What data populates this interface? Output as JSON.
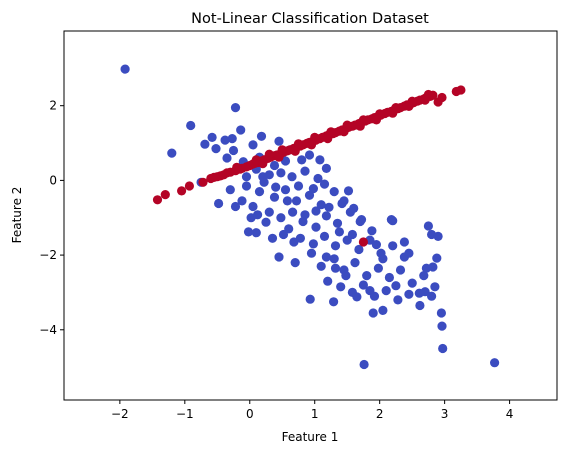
{
  "chart_data": {
    "type": "scatter",
    "title": "Not-Linear Classification Dataset",
    "xlabel": "Feature 1",
    "ylabel": "Feature 2",
    "xlim": [
      -2.86,
      4.73
    ],
    "ylim": [
      -5.88,
      4.0
    ],
    "x_ticks": [
      -2,
      -1,
      0,
      1,
      2,
      3,
      4
    ],
    "y_ticks": [
      -4,
      -2,
      0,
      2
    ],
    "x_tick_labels": [
      "−2",
      "−1",
      "0",
      "1",
      "2",
      "3",
      "4"
    ],
    "y_tick_labels": [
      "−4",
      "−2",
      "0",
      "2"
    ],
    "grid": false,
    "legend": "none",
    "series": [
      {
        "color": "#3b4cc0",
        "points": [
          [
            -1.92,
            2.98
          ],
          [
            -0.91,
            1.47
          ],
          [
            -0.22,
            1.95
          ],
          [
            -1.2,
            0.73
          ],
          [
            -0.58,
            1.15
          ],
          [
            -0.38,
            1.08
          ],
          [
            -0.27,
            1.12
          ],
          [
            -0.14,
            1.35
          ],
          [
            -0.69,
            0.97
          ],
          [
            -0.52,
            0.85
          ],
          [
            -0.25,
            0.8
          ],
          [
            0.05,
            0.95
          ],
          [
            0.18,
            1.18
          ],
          [
            0.45,
            1.05
          ],
          [
            0.62,
            0.82
          ],
          [
            0.8,
            0.55
          ],
          [
            -0.35,
            0.6
          ],
          [
            -0.1,
            0.5
          ],
          [
            0.1,
            0.3
          ],
          [
            0.3,
            0.15
          ],
          [
            -0.05,
            0.1
          ],
          [
            0.22,
            -0.05
          ],
          [
            0.48,
            0.2
          ],
          [
            0.65,
            0.1
          ],
          [
            0.85,
            0.25
          ],
          [
            1.05,
            0.05
          ],
          [
            1.15,
            -0.1
          ],
          [
            -0.3,
            -0.25
          ],
          [
            -0.05,
            -0.15
          ],
          [
            0.15,
            -0.3
          ],
          [
            0.38,
            -0.45
          ],
          [
            0.55,
            -0.25
          ],
          [
            0.72,
            -0.55
          ],
          [
            0.92,
            -0.4
          ],
          [
            1.1,
            -0.65
          ],
          [
            1.3,
            -0.3
          ],
          [
            1.45,
            -0.55
          ],
          [
            -0.75,
            -0.05
          ],
          [
            -0.12,
            -0.55
          ],
          [
            0.05,
            -0.7
          ],
          [
            0.3,
            -0.85
          ],
          [
            0.48,
            -1.0
          ],
          [
            0.66,
            -0.85
          ],
          [
            0.82,
            -1.1
          ],
          [
            1.02,
            -1.25
          ],
          [
            1.18,
            -0.95
          ],
          [
            1.35,
            -1.15
          ],
          [
            1.55,
            -0.85
          ],
          [
            1.7,
            -1.1
          ],
          [
            1.88,
            -1.35
          ],
          [
            0.1,
            -1.4
          ],
          [
            0.35,
            -1.55
          ],
          [
            0.6,
            -1.3
          ],
          [
            0.78,
            -1.55
          ],
          [
            0.98,
            -1.7
          ],
          [
            1.15,
            -1.5
          ],
          [
            1.32,
            -1.75
          ],
          [
            1.5,
            -1.6
          ],
          [
            1.68,
            -1.85
          ],
          [
            1.85,
            -1.6
          ],
          [
            2.02,
            -1.95
          ],
          [
            2.2,
            -1.75
          ],
          [
            2.38,
            -2.05
          ],
          [
            0.45,
            -2.05
          ],
          [
            0.7,
            -2.2
          ],
          [
            0.95,
            -1.95
          ],
          [
            1.1,
            -2.3
          ],
          [
            1.3,
            -2.1
          ],
          [
            1.45,
            -2.4
          ],
          [
            1.62,
            -2.2
          ],
          [
            1.8,
            -2.55
          ],
          [
            1.98,
            -2.35
          ],
          [
            2.15,
            -2.6
          ],
          [
            2.32,
            -2.4
          ],
          [
            2.5,
            -2.75
          ],
          [
            2.68,
            -2.55
          ],
          [
            2.85,
            -2.85
          ],
          [
            1.2,
            -2.7
          ],
          [
            1.4,
            -2.85
          ],
          [
            1.58,
            -3.0
          ],
          [
            1.75,
            -2.8
          ],
          [
            1.92,
            -3.1
          ],
          [
            2.1,
            -2.95
          ],
          [
            2.28,
            -3.2
          ],
          [
            2.45,
            -3.05
          ],
          [
            2.62,
            -3.35
          ],
          [
            2.8,
            -3.1
          ],
          [
            2.95,
            -3.55
          ],
          [
            2.96,
            -3.9
          ],
          [
            2.97,
            -4.5
          ],
          [
            1.76,
            -4.93
          ],
          [
            3.77,
            -4.88
          ],
          [
            0.93,
            -3.18
          ],
          [
            1.29,
            -3.25
          ],
          [
            1.9,
            -3.55
          ],
          [
            2.05,
            -3.48
          ],
          [
            2.18,
            -1.05
          ],
          [
            2.2,
            -1.08
          ],
          [
            2.38,
            -1.65
          ],
          [
            2.75,
            -1.22
          ],
          [
            2.8,
            -1.45
          ],
          [
            2.9,
            -1.5
          ],
          [
            2.88,
            -2.08
          ],
          [
            2.72,
            -2.35
          ],
          [
            2.82,
            -2.32
          ],
          [
            2.61,
            -3.02
          ],
          [
            2.7,
            -2.98
          ],
          [
            1.58,
            -1.45
          ],
          [
            1.42,
            -0.62
          ],
          [
            1.22,
            -0.72
          ],
          [
            1.02,
            -0.82
          ],
          [
            0.85,
            -0.92
          ],
          [
            0.58,
            -0.55
          ],
          [
            0.4,
            -0.18
          ],
          [
            0.2,
            0.1
          ],
          [
            -0.48,
            -0.62
          ],
          [
            -0.22,
            -0.7
          ],
          [
            0.02,
            -1.0
          ],
          [
            -0.02,
            -1.38
          ],
          [
            0.15,
            0.62
          ],
          [
            0.38,
            0.4
          ],
          [
            0.55,
            0.52
          ],
          [
            0.92,
            0.68
          ],
          [
            1.08,
            0.55
          ],
          [
            1.18,
            0.32
          ],
          [
            1.52,
            -0.28
          ],
          [
            1.6,
            -0.75
          ],
          [
            1.72,
            -1.05
          ],
          [
            1.95,
            -1.72
          ],
          [
            2.05,
            -2.1
          ],
          [
            2.25,
            -2.82
          ],
          [
            1.85,
            -2.95
          ],
          [
            1.65,
            -3.12
          ],
          [
            1.48,
            -2.55
          ],
          [
            1.32,
            -2.35
          ],
          [
            1.18,
            -2.05
          ],
          [
            0.68,
            -1.65
          ],
          [
            0.52,
            -1.45
          ],
          [
            0.25,
            -1.12
          ],
          [
            0.12,
            -0.92
          ],
          [
            0.75,
            -0.15
          ],
          [
            0.98,
            -0.22
          ],
          [
            1.38,
            -1.38
          ],
          [
            2.45,
            -1.95
          ]
        ]
      },
      {
        "color": "#b40426",
        "points": [
          [
            -1.42,
            -0.52
          ],
          [
            -1.3,
            -0.38
          ],
          [
            -1.05,
            -0.28
          ],
          [
            -0.93,
            -0.15
          ],
          [
            -0.72,
            -0.05
          ],
          [
            -0.55,
            0.08
          ],
          [
            -0.45,
            0.12
          ],
          [
            -0.35,
            0.2
          ],
          [
            -0.22,
            0.26
          ],
          [
            -0.12,
            0.32
          ],
          [
            0.0,
            0.4
          ],
          [
            0.08,
            0.46
          ],
          [
            0.18,
            0.52
          ],
          [
            0.28,
            0.59
          ],
          [
            0.38,
            0.66
          ],
          [
            0.48,
            0.72
          ],
          [
            0.58,
            0.79
          ],
          [
            0.68,
            0.86
          ],
          [
            0.78,
            0.92
          ],
          [
            0.88,
            0.99
          ],
          [
            0.98,
            1.05
          ],
          [
            1.08,
            1.12
          ],
          [
            1.18,
            1.19
          ],
          [
            1.28,
            1.25
          ],
          [
            1.38,
            1.32
          ],
          [
            1.48,
            1.39
          ],
          [
            1.58,
            1.45
          ],
          [
            1.68,
            1.52
          ],
          [
            1.78,
            1.59
          ],
          [
            1.88,
            1.65
          ],
          [
            1.98,
            1.72
          ],
          [
            2.08,
            1.79
          ],
          [
            2.18,
            1.85
          ],
          [
            2.28,
            1.92
          ],
          [
            2.38,
            1.99
          ],
          [
            2.48,
            2.05
          ],
          [
            2.58,
            2.12
          ],
          [
            2.68,
            2.18
          ],
          [
            2.78,
            2.25
          ],
          [
            2.9,
            2.1
          ],
          [
            2.96,
            2.22
          ],
          [
            3.18,
            2.38
          ],
          [
            3.25,
            2.42
          ],
          [
            -0.6,
            0.05
          ],
          [
            -0.5,
            0.1
          ],
          [
            -0.3,
            0.22
          ],
          [
            -0.15,
            0.3
          ],
          [
            -0.05,
            0.36
          ],
          [
            0.05,
            0.44
          ],
          [
            0.12,
            0.48
          ],
          [
            0.22,
            0.55
          ],
          [
            0.32,
            0.62
          ],
          [
            0.42,
            0.68
          ],
          [
            0.52,
            0.75
          ],
          [
            0.62,
            0.82
          ],
          [
            0.72,
            0.88
          ],
          [
            0.82,
            0.95
          ],
          [
            0.92,
            1.02
          ],
          [
            1.02,
            1.08
          ],
          [
            1.12,
            1.15
          ],
          [
            1.22,
            1.22
          ],
          [
            1.32,
            1.28
          ],
          [
            1.42,
            1.35
          ],
          [
            1.52,
            1.42
          ],
          [
            1.62,
            1.48
          ],
          [
            1.72,
            1.55
          ],
          [
            1.82,
            1.62
          ],
          [
            1.92,
            1.68
          ],
          [
            2.02,
            1.75
          ],
          [
            2.12,
            1.82
          ],
          [
            2.22,
            1.88
          ],
          [
            2.32,
            1.95
          ],
          [
            2.42,
            2.02
          ],
          [
            2.52,
            2.08
          ],
          [
            2.62,
            2.15
          ],
          [
            2.72,
            2.22
          ],
          [
            2.82,
            2.28
          ],
          [
            0.1,
            0.55
          ],
          [
            0.3,
            0.7
          ],
          [
            0.5,
            0.82
          ],
          [
            0.75,
            0.98
          ],
          [
            1.0,
            1.15
          ],
          [
            1.25,
            1.3
          ],
          [
            1.5,
            1.48
          ],
          [
            1.75,
            1.62
          ],
          [
            2.0,
            1.78
          ],
          [
            2.25,
            1.95
          ],
          [
            2.5,
            2.12
          ],
          [
            2.75,
            2.3
          ],
          [
            0.2,
            0.45
          ],
          [
            0.45,
            0.62
          ],
          [
            0.7,
            0.78
          ],
          [
            0.95,
            0.95
          ],
          [
            1.2,
            1.12
          ],
          [
            1.45,
            1.3
          ],
          [
            1.7,
            1.45
          ],
          [
            1.95,
            1.62
          ],
          [
            2.2,
            1.8
          ],
          [
            2.45,
            1.98
          ],
          [
            2.7,
            2.15
          ],
          [
            -0.2,
            0.35
          ],
          [
            -0.4,
            0.15
          ],
          [
            1.75,
            -1.65
          ]
        ]
      }
    ]
  }
}
